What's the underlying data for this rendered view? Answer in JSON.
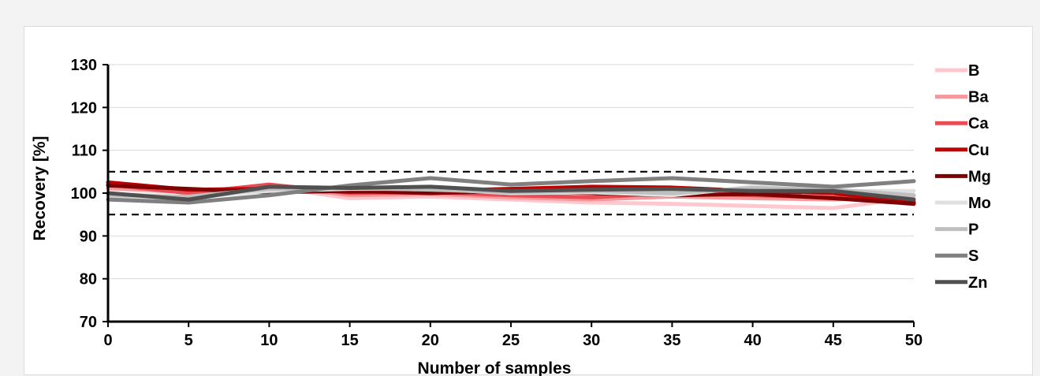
{
  "chart_data": {
    "type": "line",
    "title": "",
    "xlabel": "Number of samples",
    "ylabel": "Recovery [%]",
    "xlim": [
      0,
      50
    ],
    "ylim": [
      70,
      130
    ],
    "x_ticks": [
      0,
      5,
      10,
      15,
      20,
      25,
      30,
      35,
      40,
      45,
      50
    ],
    "y_ticks": [
      70,
      80,
      90,
      100,
      110,
      120,
      130
    ],
    "grid": "horizontal",
    "legend_position": "right",
    "reference_lines": [
      105,
      95
    ],
    "x": [
      0,
      5,
      10,
      15,
      20,
      25,
      30,
      35,
      40,
      45,
      50
    ],
    "series": [
      {
        "name": "B",
        "color": "#ffc7ce",
        "values": [
          101.0,
          100.5,
          101.5,
          98.8,
          99.2,
          98.5,
          97.8,
          97.5,
          97.0,
          96.5,
          99.0
        ]
      },
      {
        "name": "Ba",
        "color": "#f4989b",
        "values": [
          101.2,
          100.2,
          101.8,
          99.5,
          99.8,
          99.0,
          98.5,
          99.2,
          98.8,
          98.5,
          99.5
        ]
      },
      {
        "name": "Ca",
        "color": "#e84d55",
        "values": [
          102.0,
          100.0,
          102.0,
          100.0,
          100.2,
          99.5,
          99.0,
          100.0,
          99.5,
          99.0,
          98.0
        ]
      },
      {
        "name": "Cu",
        "color": "#c00000",
        "values": [
          102.5,
          100.8,
          101.0,
          100.3,
          100.5,
          101.0,
          101.5,
          101.3,
          100.5,
          100.0,
          97.8
        ]
      },
      {
        "name": "Mg",
        "color": "#7f0000",
        "values": [
          101.8,
          101.0,
          100.2,
          100.5,
          100.0,
          100.5,
          100.0,
          99.5,
          99.8,
          98.8,
          97.5
        ]
      },
      {
        "name": "Mo",
        "color": "#e0e0e0",
        "values": [
          98.8,
          99.0,
          100.5,
          101.0,
          101.0,
          100.0,
          100.2,
          99.5,
          101.5,
          100.5,
          100.5
        ]
      },
      {
        "name": "P",
        "color": "#bfbfbf",
        "values": [
          99.5,
          99.2,
          101.0,
          101.2,
          100.8,
          100.2,
          100.5,
          100.0,
          101.2,
          100.8,
          99.5
        ]
      },
      {
        "name": "S",
        "color": "#808080",
        "values": [
          98.5,
          97.8,
          99.5,
          101.8,
          103.5,
          102.0,
          102.8,
          103.5,
          102.5,
          101.5,
          102.8
        ]
      },
      {
        "name": "Zn",
        "color": "#505050",
        "values": [
          100.0,
          98.5,
          101.5,
          101.2,
          101.5,
          100.5,
          100.8,
          101.0,
          100.5,
          100.5,
          98.5
        ]
      }
    ]
  }
}
